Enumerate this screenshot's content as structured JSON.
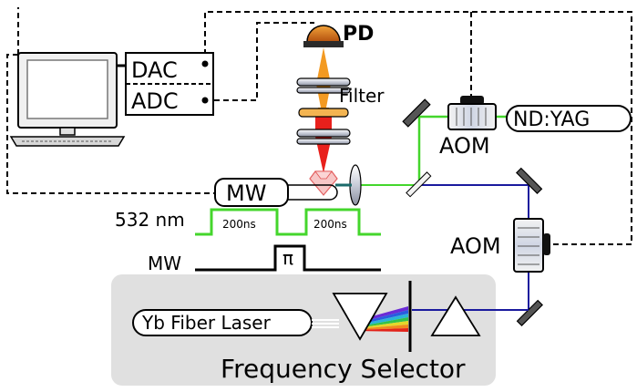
{
  "labels": {
    "dac": "DAC",
    "adc": "ADC",
    "pd": "PD",
    "filter": "Filter",
    "aom_top": "AOM",
    "ndyag": "ND:YAG",
    "mw_box": "MW",
    "aom_right": "AOM",
    "wavelength": "532 nm",
    "pulse1": "200ns",
    "pulse2": "200ns",
    "mw_row": "MW",
    "pi": "π",
    "yb_laser": "Yb Fiber Laser",
    "freq_selector": "Frequency Selector"
  },
  "colors": {
    "green_beam": "#44d62c",
    "blue_beam": "#1a1a9e",
    "red_beam": "#e8201c",
    "orange_beam": "#f39a22",
    "selector_bg": "#e0e0e0"
  },
  "icons": [
    "computer-monitor-icon",
    "keyboard-icon",
    "photodiode-icon",
    "diamond-icon",
    "mirror-icon",
    "lens-icon",
    "prism-icon"
  ]
}
